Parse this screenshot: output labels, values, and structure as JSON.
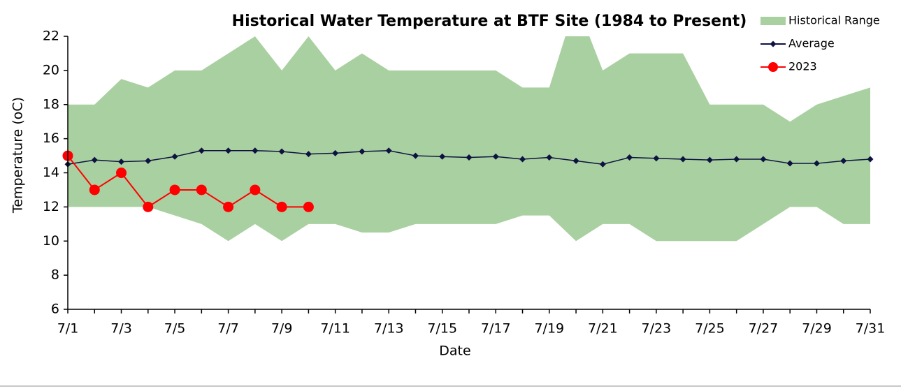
{
  "chart_data": {
    "type": "line",
    "title": "Historical Water Temperature at BTF Site (1984 to Present)",
    "x_label": "Date",
    "y_label": "Temperature  (oC)",
    "categories": [
      "7/1",
      null,
      "7/3",
      null,
      "7/5",
      null,
      "7/7",
      null,
      "7/9",
      null,
      "7/11",
      null,
      "7/13",
      null,
      "7/15",
      null,
      "7/17",
      null,
      "7/19",
      null,
      "7/21",
      null,
      "7/23",
      null,
      "7/25",
      null,
      "7/27",
      null,
      "7/29",
      null,
      "7/31"
    ],
    "ylim": [
      6,
      22
    ],
    "yticks": [
      6,
      8,
      10,
      12,
      14,
      16,
      18,
      20,
      22
    ],
    "grid": false,
    "legend": "top-right",
    "series": [
      {
        "name": "Historical Range",
        "color": "#a9d0a0",
        "kind": "range",
        "upper": [
          18,
          18,
          19.5,
          19,
          20,
          20,
          21,
          22,
          20,
          22,
          20,
          21,
          20,
          20,
          20,
          20,
          20,
          19,
          19,
          24,
          20,
          21,
          21,
          21,
          18,
          18,
          18,
          17,
          18,
          18.5,
          19
        ],
        "lower": [
          12,
          12,
          12,
          12,
          11.5,
          11,
          10,
          11,
          10,
          11,
          11,
          10.5,
          10.5,
          11,
          11,
          11,
          11,
          11.5,
          11.5,
          10,
          11,
          11,
          10,
          10,
          10,
          10,
          11,
          12,
          12,
          11,
          11
        ]
      },
      {
        "name": "Average",
        "color": "#0d1240",
        "kind": "line",
        "marker": "diamond",
        "values": [
          14.5,
          14.75,
          14.65,
          14.7,
          14.95,
          15.3,
          15.3,
          15.3,
          15.25,
          15.1,
          15.15,
          15.25,
          15.3,
          15.0,
          14.95,
          14.9,
          14.95,
          14.8,
          14.9,
          14.7,
          14.5,
          14.9,
          14.85,
          14.8,
          14.75,
          14.8,
          14.8,
          14.55,
          14.55,
          14.7,
          14.8
        ]
      },
      {
        "name": "2023",
        "color": "#ff0000",
        "kind": "line",
        "marker": "circle",
        "values": [
          15,
          13,
          14,
          12,
          13,
          13,
          12,
          13,
          12,
          12,
          null,
          null,
          null,
          null,
          null,
          null,
          null,
          null,
          null,
          null,
          null,
          null,
          null,
          null,
          null,
          null,
          null,
          null,
          null,
          null,
          null
        ]
      }
    ]
  }
}
